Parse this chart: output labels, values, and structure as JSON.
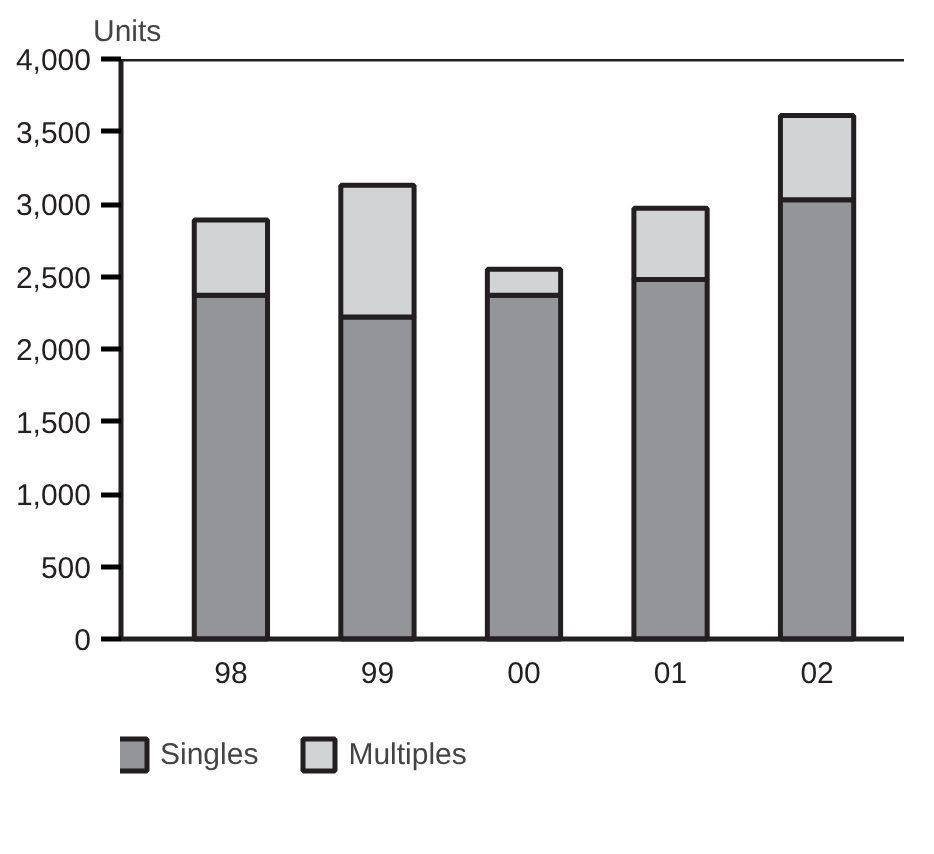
{
  "chart_data": {
    "type": "bar",
    "stacked": true,
    "ylabel": "Units",
    "categories": [
      "98",
      "99",
      "00",
      "01",
      "02"
    ],
    "series": [
      {
        "name": "Singles",
        "color": "#939598",
        "values": [
          2370,
          2220,
          2370,
          2480,
          3030
        ]
      },
      {
        "name": "Multiples",
        "color": "#d1d3d4",
        "values": [
          520,
          910,
          180,
          490,
          580
        ]
      }
    ],
    "ylim": [
      0,
      4000
    ],
    "yticks": [
      {
        "value": 0,
        "label": "0"
      },
      {
        "value": 500,
        "label": "500"
      },
      {
        "value": 1000,
        "label": "1,000"
      },
      {
        "value": 1500,
        "label": "1,500"
      },
      {
        "value": 2000,
        "label": "2,000"
      },
      {
        "value": 2500,
        "label": "2,500"
      },
      {
        "value": 3000,
        "label": "3,000"
      },
      {
        "value": 3500,
        "label": "3,500"
      },
      {
        "value": 4000,
        "label": "4,000"
      }
    ],
    "grid": false,
    "legend": "bottom"
  }
}
